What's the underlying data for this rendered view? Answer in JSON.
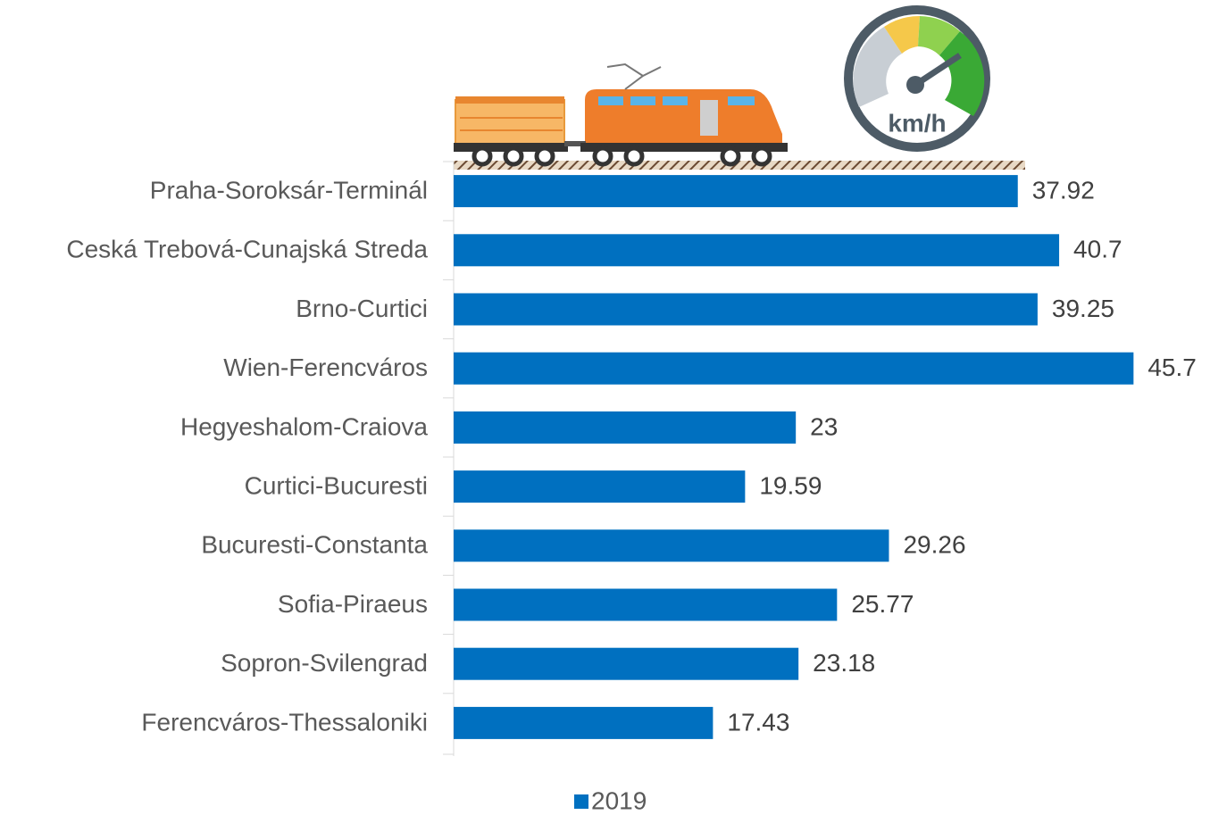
{
  "chart_data": {
    "type": "bar",
    "orientation": "horizontal",
    "categories": [
      "Praha-Soroksár-Terminál",
      "Ceská Trebová-Cunajská Streda",
      "Brno-Curtici",
      "Wien-Ferencváros",
      "Hegyeshalom-Craiova",
      "Curtici-Bucuresti",
      "Bucuresti-Constanta",
      "Sofia-Piraeus",
      "Sopron-Svilengrad",
      "Ferencváros-Thessaloniki"
    ],
    "series": [
      {
        "name": "2019",
        "color": "#0070c0",
        "values": [
          37.92,
          40.7,
          39.25,
          45.7,
          23,
          19.59,
          29.26,
          25.77,
          23.18,
          17.43
        ]
      }
    ],
    "xlim": [
      0,
      50
    ],
    "legend": "bottom",
    "gauge_label": "km/h"
  }
}
